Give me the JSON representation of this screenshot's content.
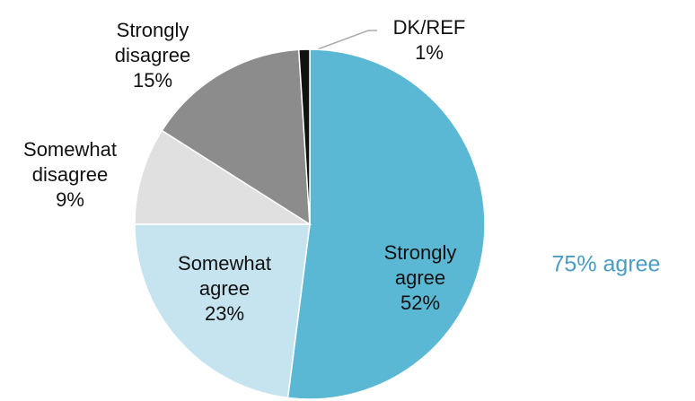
{
  "chart_data": {
    "type": "pie",
    "categories": [
      "Strongly agree",
      "Somewhat agree",
      "Somewhat disagree",
      "Strongly disagree",
      "DK/REF"
    ],
    "values": [
      52,
      23,
      9,
      15,
      1
    ],
    "value_labels": [
      "52%",
      "23%",
      "9%",
      "15%",
      "1%"
    ],
    "colors": [
      "#5bb8d4",
      "#c5e4ef",
      "#e0e0e0",
      "#8c8c8c",
      "#111111"
    ],
    "annotation": "75% agree"
  }
}
